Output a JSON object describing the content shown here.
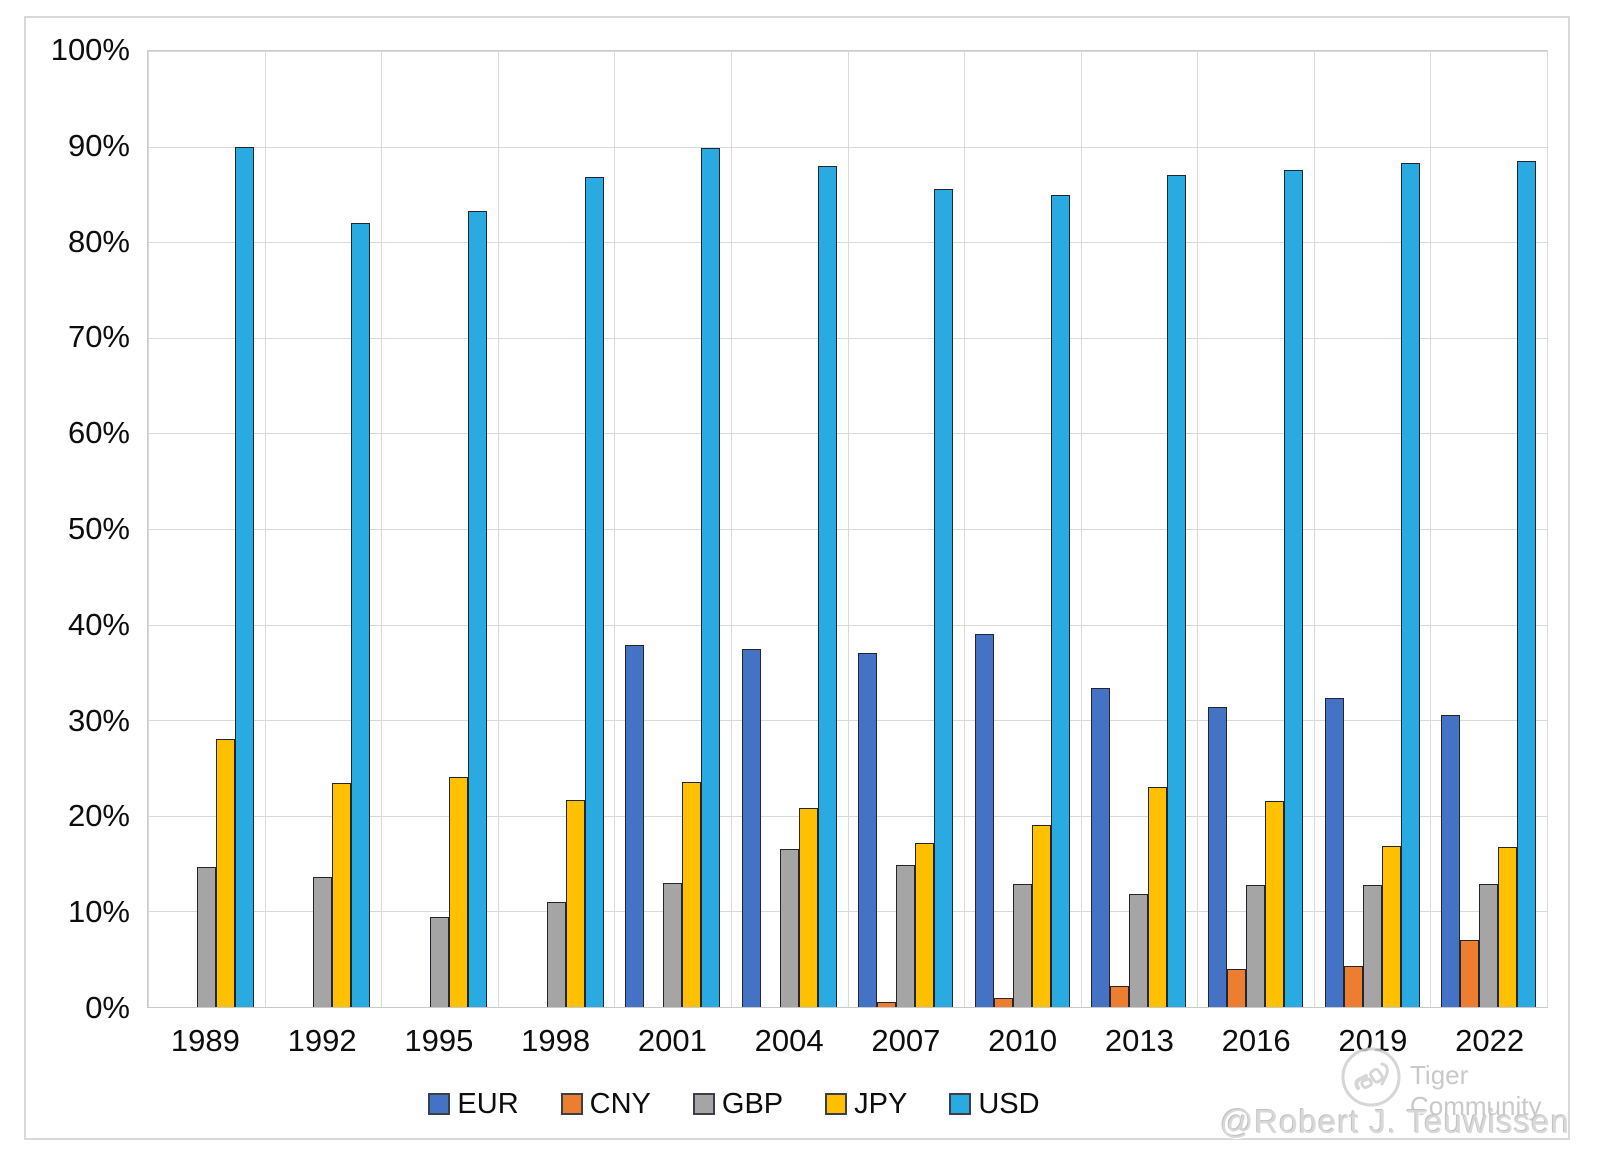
{
  "chart_data": {
    "type": "bar",
    "title": "",
    "xlabel": "",
    "ylabel": "",
    "ylim": [
      0,
      100
    ],
    "grid": true,
    "legend_position": "bottom",
    "categories": [
      "1989",
      "1992",
      "1995",
      "1998",
      "2001",
      "2004",
      "2007",
      "2010",
      "2013",
      "2016",
      "2019",
      "2022"
    ],
    "yticks": [
      "100%",
      "90%",
      "80%",
      "70%",
      "60%",
      "50%",
      "40%",
      "30%",
      "20%",
      "10%",
      "0%"
    ],
    "series": [
      {
        "name": "EUR",
        "color": "#4472C4",
        "values": [
          null,
          null,
          null,
          null,
          37.9,
          37.4,
          37.0,
          39.0,
          33.4,
          31.4,
          32.3,
          30.5
        ]
      },
      {
        "name": "CNY",
        "color": "#ED7D31",
        "values": [
          null,
          null,
          null,
          null,
          null,
          null,
          0.5,
          0.9,
          2.2,
          4.0,
          4.3,
          7.0
        ]
      },
      {
        "name": "GBP",
        "color": "#A5A5A5",
        "values": [
          14.6,
          13.6,
          9.4,
          11.0,
          13.0,
          16.5,
          14.9,
          12.9,
          11.8,
          12.8,
          12.8,
          12.9
        ]
      },
      {
        "name": "JPY",
        "color": "#FFC000",
        "values": [
          28.0,
          23.4,
          24.1,
          21.7,
          23.5,
          20.8,
          17.2,
          19.0,
          23.0,
          21.6,
          16.8,
          16.7
        ]
      },
      {
        "name": "USD",
        "color": "#29ABE2",
        "values": [
          90.0,
          82.0,
          83.3,
          86.8,
          89.9,
          88.0,
          85.6,
          84.9,
          87.0,
          87.6,
          88.3,
          88.5
        ]
      }
    ]
  },
  "watermark": {
    "brand": "Tiger Community",
    "author": "@Robert J. Teuwissen"
  },
  "colors": {
    "gridline": "#d9d9d9",
    "bar_border": "#23262e",
    "axis_text": "#0d0d0d",
    "watermark_text": "#c9c9c9"
  }
}
